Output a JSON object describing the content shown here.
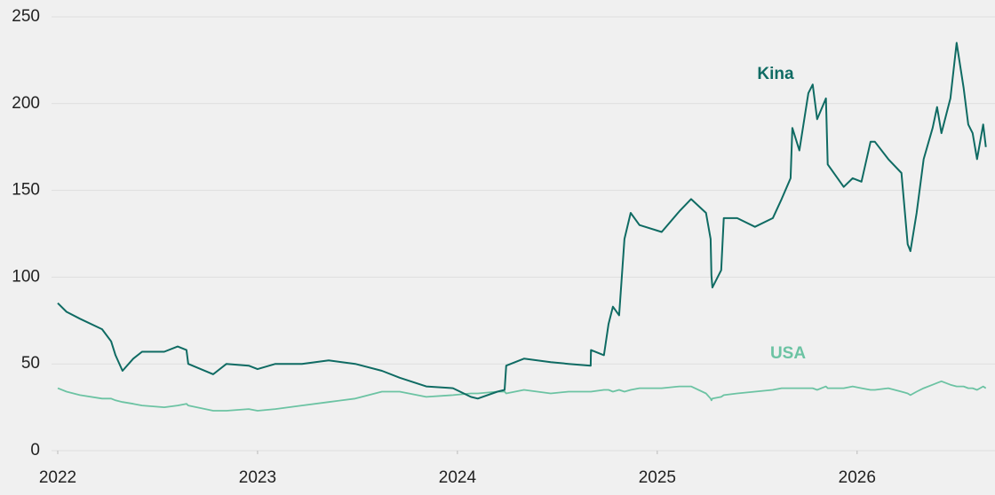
{
  "chart_data": {
    "type": "line",
    "x": [
      2022,
      2022.044,
      2022.111,
      2022.222,
      2022.267,
      2022.289,
      2022.324,
      2022.378,
      2022.422,
      2022.533,
      2022.6,
      2022.644,
      2022.653,
      2022.778,
      2022.844,
      2022.956,
      2023,
      2023.089,
      2023.222,
      2023.356,
      2023.489,
      2023.622,
      2023.711,
      2023.844,
      2023.978,
      2024.067,
      2024.102,
      2024.2,
      2024.236,
      2024.244,
      2024.333,
      2024.467,
      2024.556,
      2024.667,
      2024.668,
      2024.733,
      2024.756,
      2024.778,
      2024.809,
      2024.836,
      2024.867,
      2024.911,
      2025.022,
      2025.111,
      2025.169,
      2025.244,
      2025.267,
      2025.271,
      2025.276,
      2025.32,
      2025.333,
      2025.4,
      2025.489,
      2025.578,
      2025.622,
      2025.667,
      2025.676,
      2025.711,
      2025.756,
      2025.778,
      2025.8,
      2025.844,
      2025.853,
      2025.933,
      2025.978,
      2026.022,
      2026.067,
      2026.089,
      2026.156,
      2026.222,
      2026.253,
      2026.267,
      2026.298,
      2026.333,
      2026.378,
      2026.4,
      2026.422,
      2026.467,
      2026.498,
      2026.533,
      2026.556,
      2026.578,
      2026.6,
      2026.631,
      2026.644
    ],
    "series": [
      {
        "name": "Kina",
        "color": "#0f6b63",
        "values": [
          85,
          80,
          76,
          70,
          63,
          55,
          46,
          53,
          57,
          57,
          60,
          58,
          50,
          44,
          50,
          49,
          47,
          50,
          50,
          52,
          50,
          46,
          42,
          37,
          36,
          31,
          30,
          34,
          35,
          49,
          53,
          51,
          50,
          49,
          58,
          55,
          73,
          83,
          78,
          122,
          137,
          130,
          126,
          138,
          145,
          137,
          122,
          101,
          94,
          104,
          134,
          134,
          129,
          134,
          145,
          157,
          186,
          173,
          206,
          211,
          191,
          203,
          165,
          152,
          157,
          155,
          178,
          178,
          168,
          160,
          119,
          115,
          137,
          168,
          186,
          198,
          183,
          203,
          235,
          209,
          188,
          183,
          168,
          188,
          175
        ]
      },
      {
        "name": "USA",
        "color": "#6cc3a3",
        "values": [
          36,
          34,
          32,
          30,
          30,
          29,
          28,
          27,
          26,
          25,
          26,
          27,
          26,
          23,
          23,
          24,
          23,
          24,
          26,
          28,
          30,
          34,
          34,
          31,
          32,
          33,
          33,
          34,
          34,
          33,
          35,
          33,
          34,
          34,
          34,
          35,
          35,
          34,
          35,
          34,
          35,
          36,
          36,
          37,
          37,
          33,
          30,
          29,
          30,
          31,
          32,
          33,
          34,
          35,
          36,
          36,
          36,
          36,
          36,
          36,
          35,
          37,
          36,
          36,
          37,
          36,
          35,
          35,
          36,
          34,
          33,
          32,
          34,
          36,
          38,
          39,
          40,
          38,
          37,
          37,
          36,
          36,
          35,
          37,
          36
        ]
      }
    ],
    "xlim": [
      2022,
      2026.69
    ],
    "xticks": [
      2022,
      2023,
      2024,
      2025,
      2026
    ],
    "ylim": [
      0,
      250
    ],
    "yticks": [
      0,
      50,
      100,
      150,
      200,
      250
    ],
    "grid": true
  }
}
